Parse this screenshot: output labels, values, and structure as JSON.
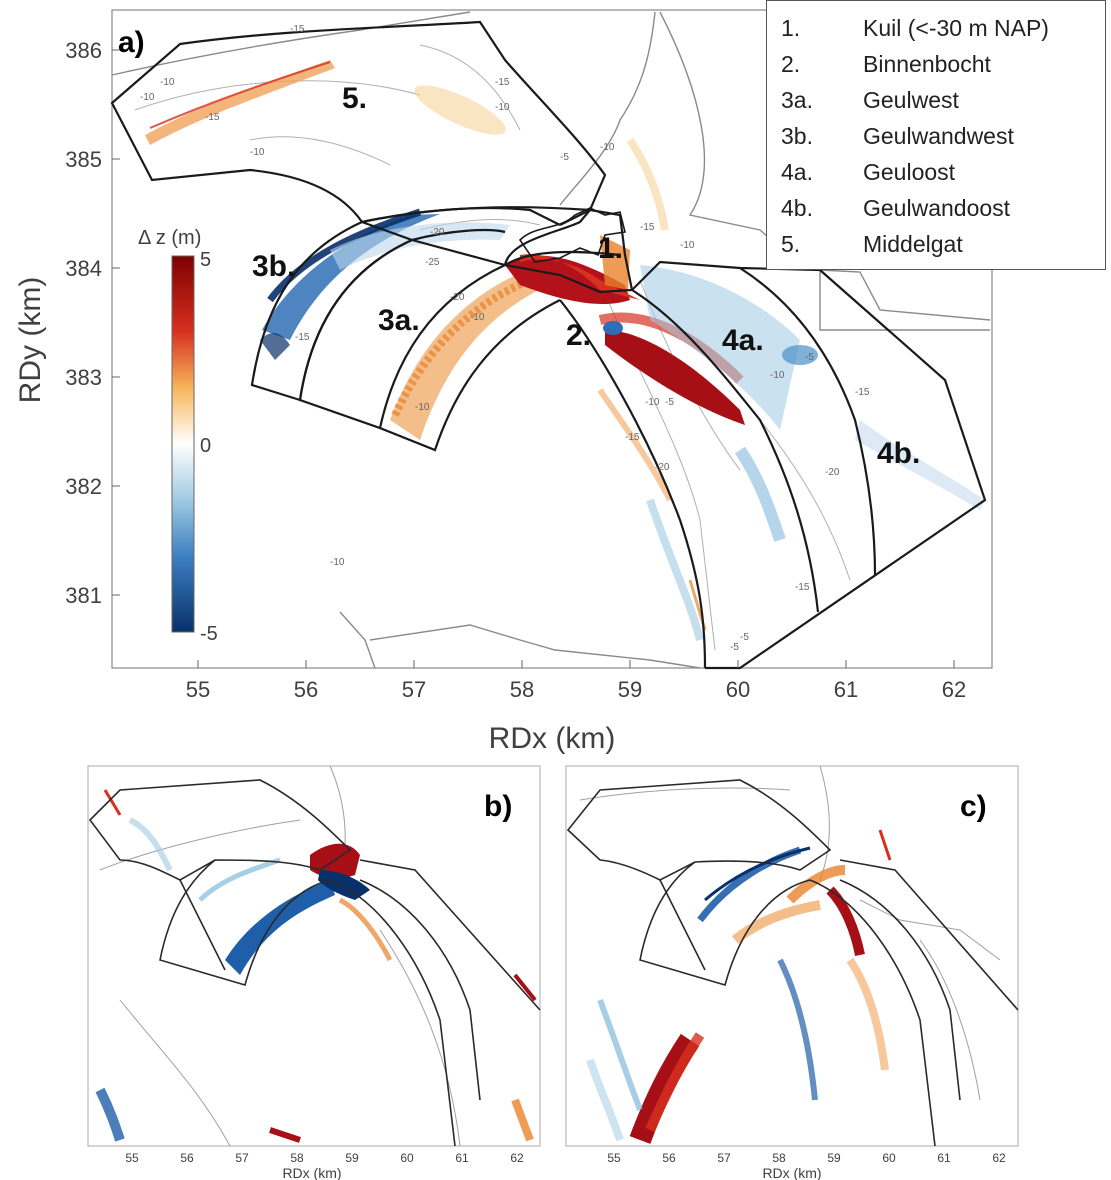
{
  "panel_a": {
    "label": "a)",
    "xlabel": "RDx (km)",
    "ylabel": "RDy (km)",
    "xticks": [
      "55",
      "56",
      "57",
      "58",
      "59",
      "60",
      "61",
      "62"
    ],
    "yticks": [
      "386",
      "385",
      "384",
      "383",
      "382",
      "381"
    ],
    "colorbar": {
      "title": "Δ z (m)",
      "max_label": "5",
      "mid_label": "0",
      "min_label": "-5"
    },
    "zones": [
      {
        "label": "5."
      },
      {
        "label": "3b."
      },
      {
        "label": "3a."
      },
      {
        "label": "1."
      },
      {
        "label": "2."
      },
      {
        "label": "4a."
      },
      {
        "label": "4b."
      }
    ],
    "contour_labels": [
      "-15",
      "-10",
      "-10",
      "-15",
      "-10",
      "-10",
      "-15",
      "-20",
      "-25",
      "-20",
      "-10",
      "-15",
      "-10",
      "-5",
      "-10",
      "-15",
      "-10",
      "-10",
      "-5",
      "-15",
      "-20",
      "-10",
      "-5",
      "-15",
      "-15",
      "-20",
      "-5",
      "-5",
      "-10"
    ]
  },
  "legend": [
    {
      "num": "1.",
      "name": "Kuil (<-30 m NAP)"
    },
    {
      "num": "2.",
      "name": "Binnenbocht"
    },
    {
      "num": "3a.",
      "name": "Geulwest"
    },
    {
      "num": "3b.",
      "name": "Geulwandwest"
    },
    {
      "num": "4a.",
      "name": "Geuloost"
    },
    {
      "num": "4b.",
      "name": "Geulwandoost"
    },
    {
      "num": "5.",
      "name": "Middelgat"
    }
  ],
  "panel_b": {
    "label": "b)",
    "xlabel": "RDx (km)",
    "xticks": [
      "55",
      "56",
      "57",
      "58",
      "59",
      "60",
      "61",
      "62"
    ]
  },
  "panel_c": {
    "label": "c)",
    "xlabel": "RDx (km)",
    "xticks": [
      "55",
      "56",
      "57",
      "58",
      "59",
      "60",
      "61",
      "62"
    ]
  },
  "colors": {
    "positive": "#a50f15",
    "positive_mid": "#e8822a",
    "negative": "#08306b",
    "negative_mid": "#4a90c8",
    "outline": "#1a1a1a",
    "contour": "#999999"
  }
}
